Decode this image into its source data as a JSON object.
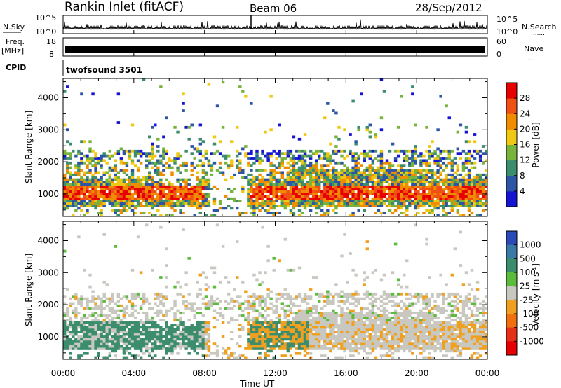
{
  "header": {
    "station": "Rankin Inlet (fitACF)",
    "beam": "Beam 06",
    "date": "28/Sep/2012"
  },
  "left_labels": {
    "nsky": "N.Sky",
    "freq_line1": "Freq.",
    "freq_line2": "[MHz]",
    "cpid": "CPID"
  },
  "right_labels": {
    "nsearch": "N.Search",
    "nsearch_dots": "........",
    "nave": "Nave",
    "nave_dots": "...."
  },
  "noise_panel": {
    "left_ticks": [
      "10^5",
      "10^0"
    ],
    "right_ticks": [
      "10^5",
      "10^0"
    ]
  },
  "freq_panel": {
    "left_ticks": [
      "18",
      "8"
    ],
    "right_ticks": [
      "60",
      "0"
    ]
  },
  "cpid_panel": {
    "text": "twofsound 3501"
  },
  "chart_data": [
    {
      "type": "heatmap",
      "name": "power",
      "ylabel": "Slant Range [km]",
      "yticks": [
        "1000",
        "2000",
        "3000",
        "4000"
      ],
      "ylim": [
        300,
        4600
      ],
      "colorbar_label": "Power [dB]",
      "colorbar_ticks": [
        "4",
        "8",
        "12",
        "16",
        "20",
        "24",
        "28"
      ],
      "colors": [
        "#1414d2",
        "#2d55a5",
        "#3c8c6e",
        "#78b43c",
        "#f0c814",
        "#f08c00",
        "#f05014",
        "#e60000"
      ]
    },
    {
      "type": "heatmap",
      "name": "velocity",
      "ylabel": "Slant Range [km]",
      "yticks": [
        "1000",
        "2000",
        "3000",
        "4000"
      ],
      "ylim": [
        300,
        4600
      ],
      "colorbar_label": "Velocity [m s^-1]",
      "colorbar_ticks": [
        "1000",
        "500",
        "100",
        "25",
        "-25",
        "-100",
        "-500",
        "-1000"
      ],
      "colors": [
        "#2a4ab8",
        "#3a78a8",
        "#3c8c6e",
        "#5cbb3c",
        "#c8c8c0",
        "#f0a020",
        "#f07010",
        "#e63018",
        "#e60000"
      ]
    }
  ],
  "x_axis": {
    "ticks": [
      "00:00",
      "04:00",
      "08:00",
      "12:00",
      "16:00",
      "20:00",
      "00:00"
    ],
    "label": "Time UT"
  }
}
